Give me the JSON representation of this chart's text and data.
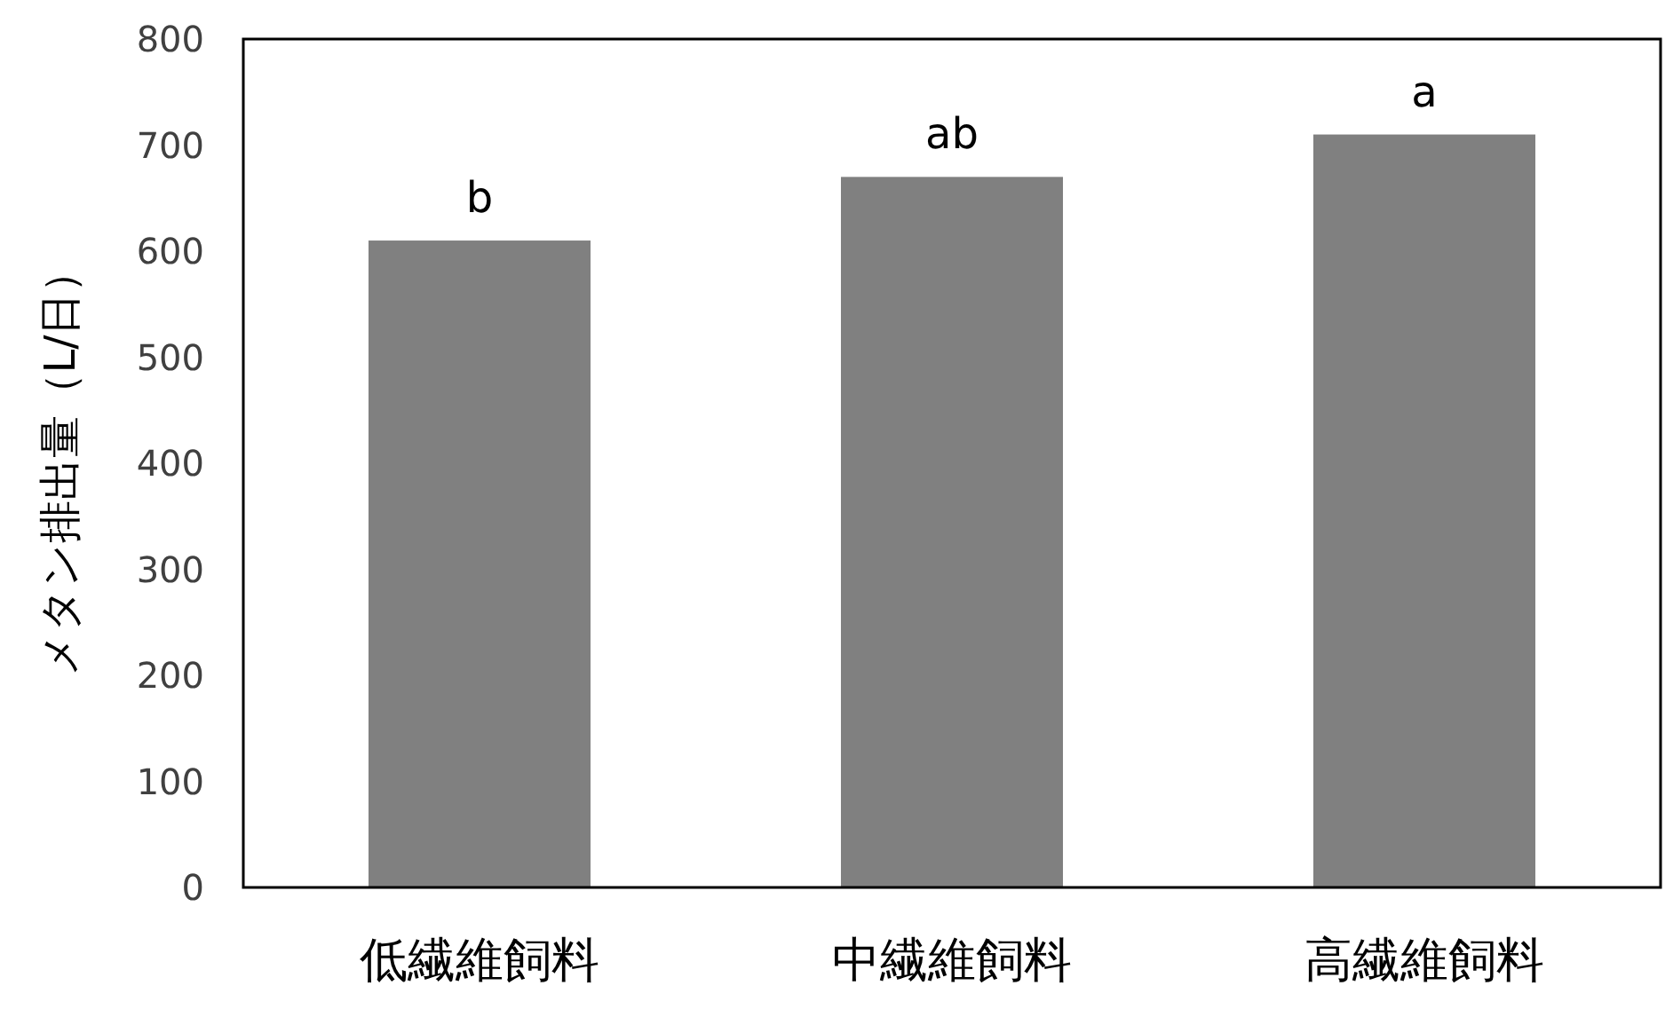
{
  "chart_data": {
    "type": "bar",
    "ylabel": "メタン排出量（L/日）",
    "categories": [
      "低繊維飼料",
      "中繊維飼料",
      "高繊維飼料"
    ],
    "values": [
      610,
      670,
      710
    ],
    "color": "#808080",
    "ylim": [
      0,
      800
    ],
    "yticks": [
      0,
      100,
      200,
      300,
      400,
      500,
      600,
      700,
      800
    ],
    "annotations": [
      {
        "text": "b",
        "x": "低繊維飼料",
        "y": 610
      },
      {
        "text": "ab",
        "x": "中繊維飼料",
        "y": 670
      },
      {
        "text": "a",
        "x": "高繊維飼料",
        "y": 710
      }
    ]
  }
}
